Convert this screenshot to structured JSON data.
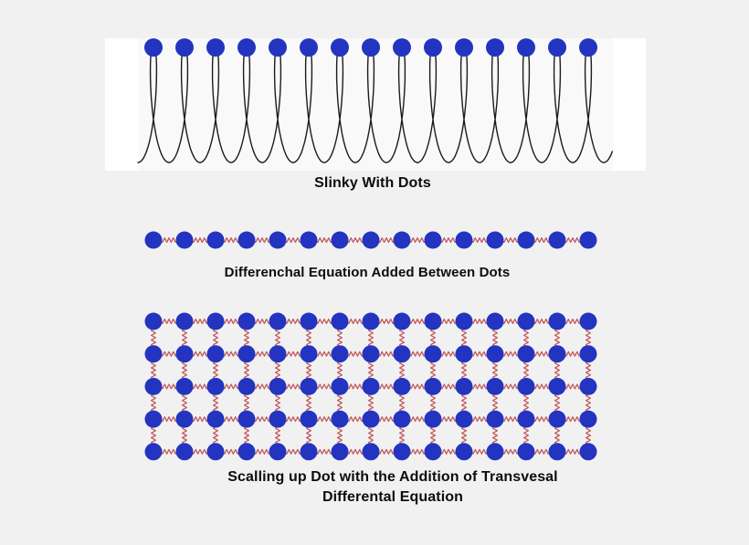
{
  "page": {
    "background": "#f1f1f2",
    "band": "#f9f9f9",
    "band_ends": "#ffffff"
  },
  "colors": {
    "dot": "#2334c0",
    "spring": "#c25c5c",
    "coil": "#1b1b1b",
    "text": "#0d0d0d"
  },
  "slinky": {
    "caption": "Slinky With Dots",
    "dot_count": 15
  },
  "chain": {
    "caption": "Differenchal Equation Added Between Dots",
    "dot_count": 15
  },
  "grid": {
    "caption_line1": "Scalling up Dot with the Addition of Transvesal",
    "caption_line2": "Differental Equation",
    "columns": 15,
    "rows": 5
  }
}
